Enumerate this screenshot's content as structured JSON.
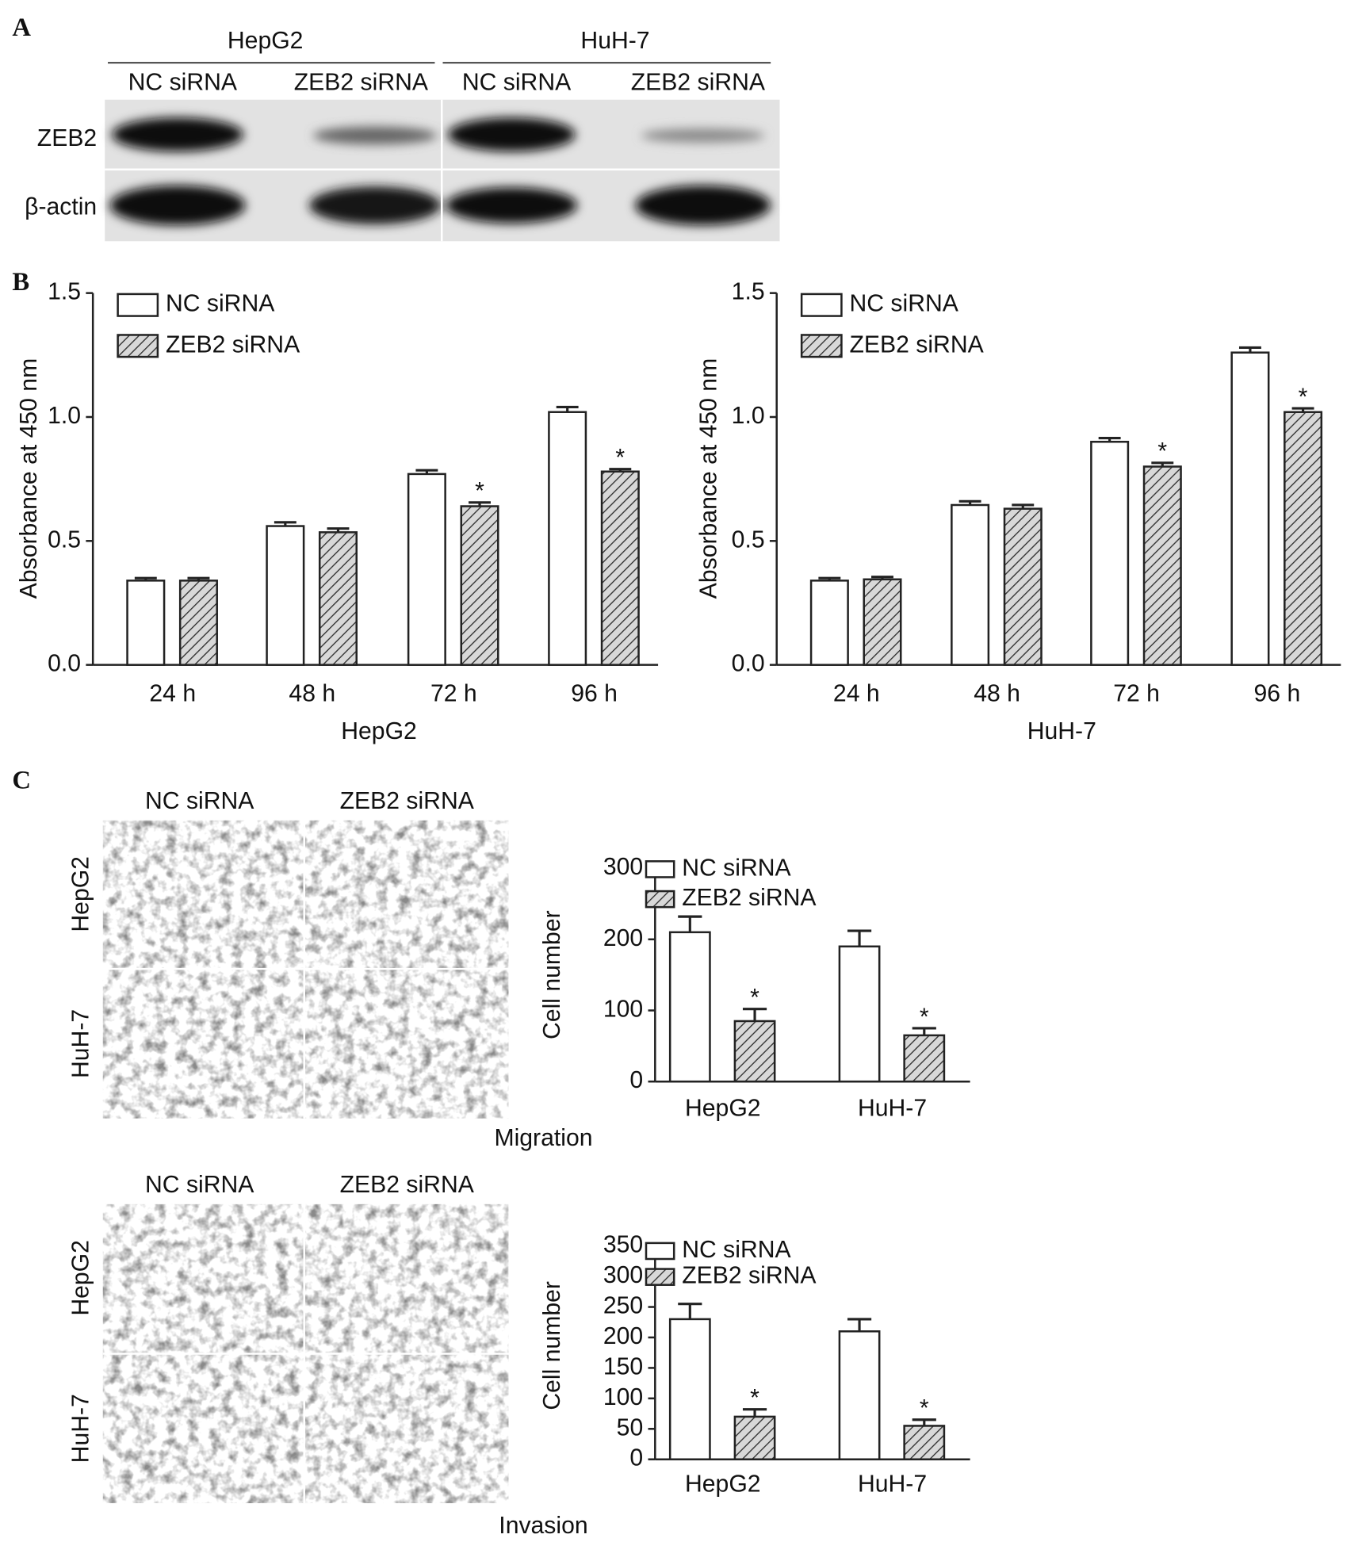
{
  "blot": {
    "panel": "A",
    "groups": [
      "HepG2",
      "HuH-7"
    ],
    "lanes": [
      "NC siRNA",
      "ZEB2 siRNA",
      "NC siRNA",
      "ZEB2 siRNA"
    ],
    "proteins": [
      "ZEB2",
      "β-actin"
    ]
  },
  "panel_b": "B",
  "panel_c": "C",
  "micrographs": [
    {
      "columns": [
        "NC siRNA",
        "ZEB2 siRNA"
      ],
      "rows": [
        "HepG2",
        "HuH-7"
      ]
    },
    {
      "columns": [
        "NC siRNA",
        "ZEB2 siRNA"
      ],
      "rows": [
        "HepG2",
        "HuH-7"
      ]
    }
  ],
  "chart_data": [
    {
      "type": "bar",
      "xlabel": "HepG2",
      "ylabel": "Absorbance at 450 nm",
      "categories": [
        "24 h",
        "48 h",
        "72 h",
        "96 h"
      ],
      "series": [
        {
          "name": "NC siRNA",
          "color": "#ffffff",
          "values": [
            0.34,
            0.56,
            0.77,
            1.02
          ],
          "errors": [
            0.01,
            0.015,
            0.015,
            0.02
          ],
          "markers": [
            null,
            null,
            null,
            null
          ]
        },
        {
          "name": "ZEB2 siRNA",
          "color": "#d0d0d0",
          "pattern": "hatch",
          "values": [
            0.34,
            0.535,
            0.64,
            0.78
          ],
          "errors": [
            0.01,
            0.015,
            0.015,
            0.01
          ],
          "markers": [
            null,
            null,
            "*",
            "*"
          ]
        }
      ],
      "ylim": [
        0,
        1.5
      ],
      "yticks": [
        {
          "value": 0,
          "label": "0.0"
        },
        0.5,
        {
          "value": 1,
          "label": "1.0"
        },
        1.5
      ],
      "legend": "upper left"
    },
    {
      "type": "bar",
      "xlabel": "HuH-7",
      "ylabel": "Absorbance at 450 nm",
      "categories": [
        "24 h",
        "48 h",
        "72 h",
        "96 h"
      ],
      "series": [
        {
          "name": "NC siRNA",
          "color": "#ffffff",
          "values": [
            0.34,
            0.645,
            0.9,
            1.26
          ],
          "errors": [
            0.01,
            0.015,
            0.015,
            0.02
          ],
          "markers": [
            null,
            null,
            null,
            null
          ]
        },
        {
          "name": "ZEB2 siRNA",
          "color": "#d0d0d0",
          "pattern": "hatch",
          "values": [
            0.345,
            0.63,
            0.8,
            1.02
          ],
          "errors": [
            0.01,
            0.015,
            0.015,
            0.015
          ],
          "markers": [
            null,
            null,
            "*",
            "*"
          ]
        }
      ],
      "ylim": [
        0,
        1.5
      ],
      "yticks": [
        {
          "value": 0,
          "label": "0.0"
        },
        0.5,
        {
          "value": 1,
          "label": "1.0"
        },
        1.5
      ],
      "legend": "upper left"
    },
    {
      "type": "bar",
      "xlabel": "Migration",
      "ylabel": "Cell number",
      "categories": [
        "HepG2",
        "HuH-7"
      ],
      "series": [
        {
          "name": "NC siRNA",
          "color": "#ffffff",
          "values": [
            210,
            190
          ],
          "errors": [
            22,
            22
          ],
          "markers": [
            null,
            null
          ]
        },
        {
          "name": "ZEB2 siRNA",
          "color": "#d0d0d0",
          "pattern": "hatch",
          "values": [
            85,
            65
          ],
          "errors": [
            17,
            10
          ],
          "markers": [
            "*",
            "*"
          ]
        }
      ],
      "ylim": [
        0,
        300
      ],
      "yticks": [
        0,
        100,
        200,
        300
      ],
      "legend": "upper left"
    },
    {
      "type": "bar",
      "xlabel": "Invasion",
      "ylabel": "Cell number",
      "categories": [
        "HepG2",
        "HuH-7"
      ],
      "series": [
        {
          "name": "NC siRNA",
          "color": "#ffffff",
          "values": [
            230,
            210
          ],
          "errors": [
            25,
            20
          ],
          "markers": [
            null,
            null
          ]
        },
        {
          "name": "ZEB2 siRNA",
          "color": "#d0d0d0",
          "pattern": "hatch",
          "values": [
            70,
            55
          ],
          "errors": [
            12,
            10
          ],
          "markers": [
            "*",
            "*"
          ]
        }
      ],
      "ylim": [
        0,
        350
      ],
      "yticks": [
        0,
        50,
        100,
        150,
        200,
        250,
        300,
        350
      ],
      "legend": "upper left"
    }
  ]
}
